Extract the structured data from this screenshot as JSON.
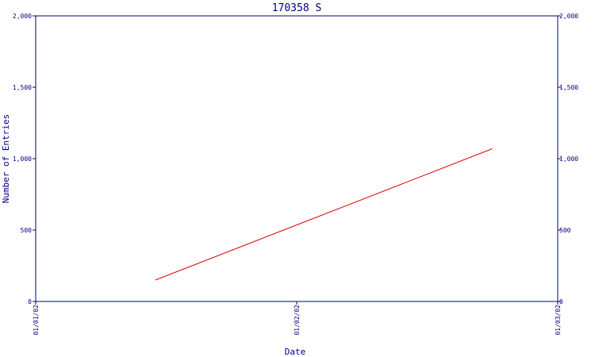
{
  "chart_data": {
    "type": "line",
    "title": "170358 S",
    "xlabel": "Date",
    "ylabel": "Number of Entries",
    "x_ticks": [
      "01/01/02",
      "01/02/02",
      "01/03/02"
    ],
    "y_ticks": [
      "0",
      "500",
      "1,000",
      "1,500",
      "2,000"
    ],
    "ylim": [
      0,
      2000
    ],
    "xlim": [
      "01/01/02",
      "01/03/02"
    ],
    "grid": false,
    "secondary_y_axis": true,
    "series": [
      {
        "color": "#e00000",
        "points": [
          {
            "x": "01/01/02 11:00",
            "y": 150
          },
          {
            "x": "01/02/02 18:00",
            "y": 1070
          }
        ]
      }
    ],
    "colors": {
      "axis": "#000080",
      "series": "#e00000",
      "background": "#ffffff"
    }
  }
}
